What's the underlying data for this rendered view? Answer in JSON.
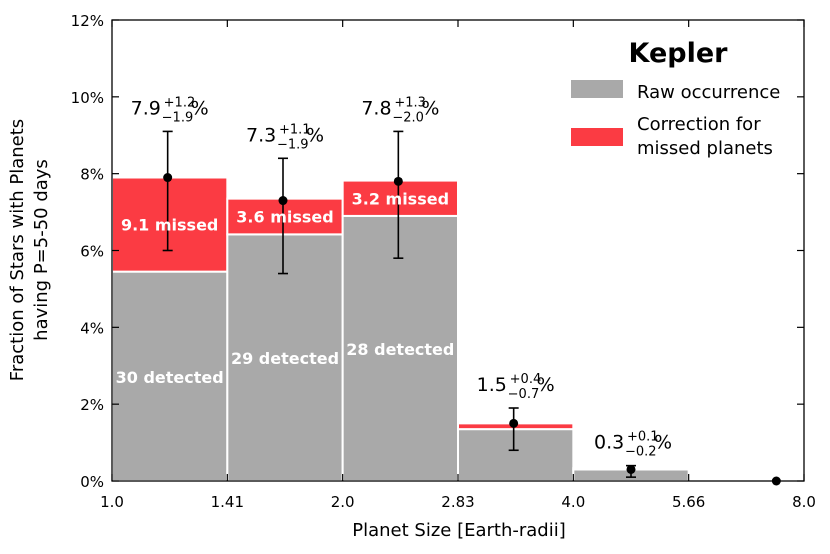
{
  "chart_data": {
    "type": "bar",
    "stacked": true,
    "xlabel": "Planet Size [Earth-radii]",
    "ylabel_line1": "Fraction of Stars with Planets",
    "ylabel_line2": "having P=5-50 days",
    "x_ticks": [
      "1.0",
      "1.41",
      "2.0",
      "2.83",
      "4.0",
      "5.66",
      "8.0"
    ],
    "y_ticks": [
      "0%",
      "2%",
      "4%",
      "6%",
      "8%",
      "10%",
      "12%"
    ],
    "ylim": [
      0,
      12
    ],
    "bins": [
      {
        "lo": "1.0",
        "hi": "1.41",
        "raw": 5.45,
        "correction": 2.45,
        "total": 7.9,
        "err_up": 1.2,
        "err_down": 1.9,
        "value_text": "7.9",
        "err_up_text": "+1.2",
        "err_down_text": "−1.9",
        "pct": "%",
        "detected_label": "30 detected",
        "missed_label": "9.1 missed"
      },
      {
        "lo": "1.41",
        "hi": "2.0",
        "raw": 6.42,
        "correction": 0.93,
        "total": 7.3,
        "err_up": 1.1,
        "err_down": 1.9,
        "value_text": "7.3",
        "err_up_text": "+1.1",
        "err_down_text": "−1.9",
        "pct": "%",
        "detected_label": "29 detected",
        "missed_label": "3.6 missed"
      },
      {
        "lo": "2.0",
        "hi": "2.83",
        "raw": 6.9,
        "correction": 0.92,
        "total": 7.8,
        "err_up": 1.3,
        "err_down": 2.0,
        "value_text": "7.8",
        "err_up_text": "+1.3",
        "err_down_text": "−2.0",
        "pct": "%",
        "detected_label": "28 detected",
        "missed_label": "3.2 missed"
      },
      {
        "lo": "2.83",
        "hi": "4.0",
        "raw": 1.35,
        "correction": 0.15,
        "total": 1.5,
        "err_up": 0.4,
        "err_down": 0.7,
        "value_text": "1.5",
        "err_up_text": "+0.4",
        "err_down_text": "−0.7",
        "pct": "%",
        "detected_label": "",
        "missed_label": ""
      },
      {
        "lo": "4.0",
        "hi": "5.66",
        "raw": 0.3,
        "correction": 0.04,
        "total": 0.3,
        "err_up": 0.1,
        "err_down": 0.2,
        "value_text": "0.3",
        "err_up_text": "+0.1",
        "err_down_text": "−0.2",
        "pct": "%",
        "detected_label": "",
        "missed_label": ""
      },
      {
        "lo": "5.66",
        "hi": "8.0",
        "raw": 0,
        "correction": 0,
        "total": 0.0,
        "err_up": 0,
        "err_down": 0,
        "value_text": "",
        "err_up_text": "",
        "err_down_text": "",
        "pct": "",
        "detected_label": "",
        "missed_label": ""
      }
    ],
    "legend": {
      "title": "Kepler",
      "items": [
        {
          "label_lines": [
            "Raw occurrence"
          ],
          "color": "#a9a9a9"
        },
        {
          "label_lines": [
            "Correction for",
            "missed planets"
          ],
          "color": "#fb3b43"
        }
      ]
    },
    "colors": {
      "raw": "#a9a9a9",
      "correction": "#fb3b43",
      "bar_edge": "#ffffff"
    }
  }
}
